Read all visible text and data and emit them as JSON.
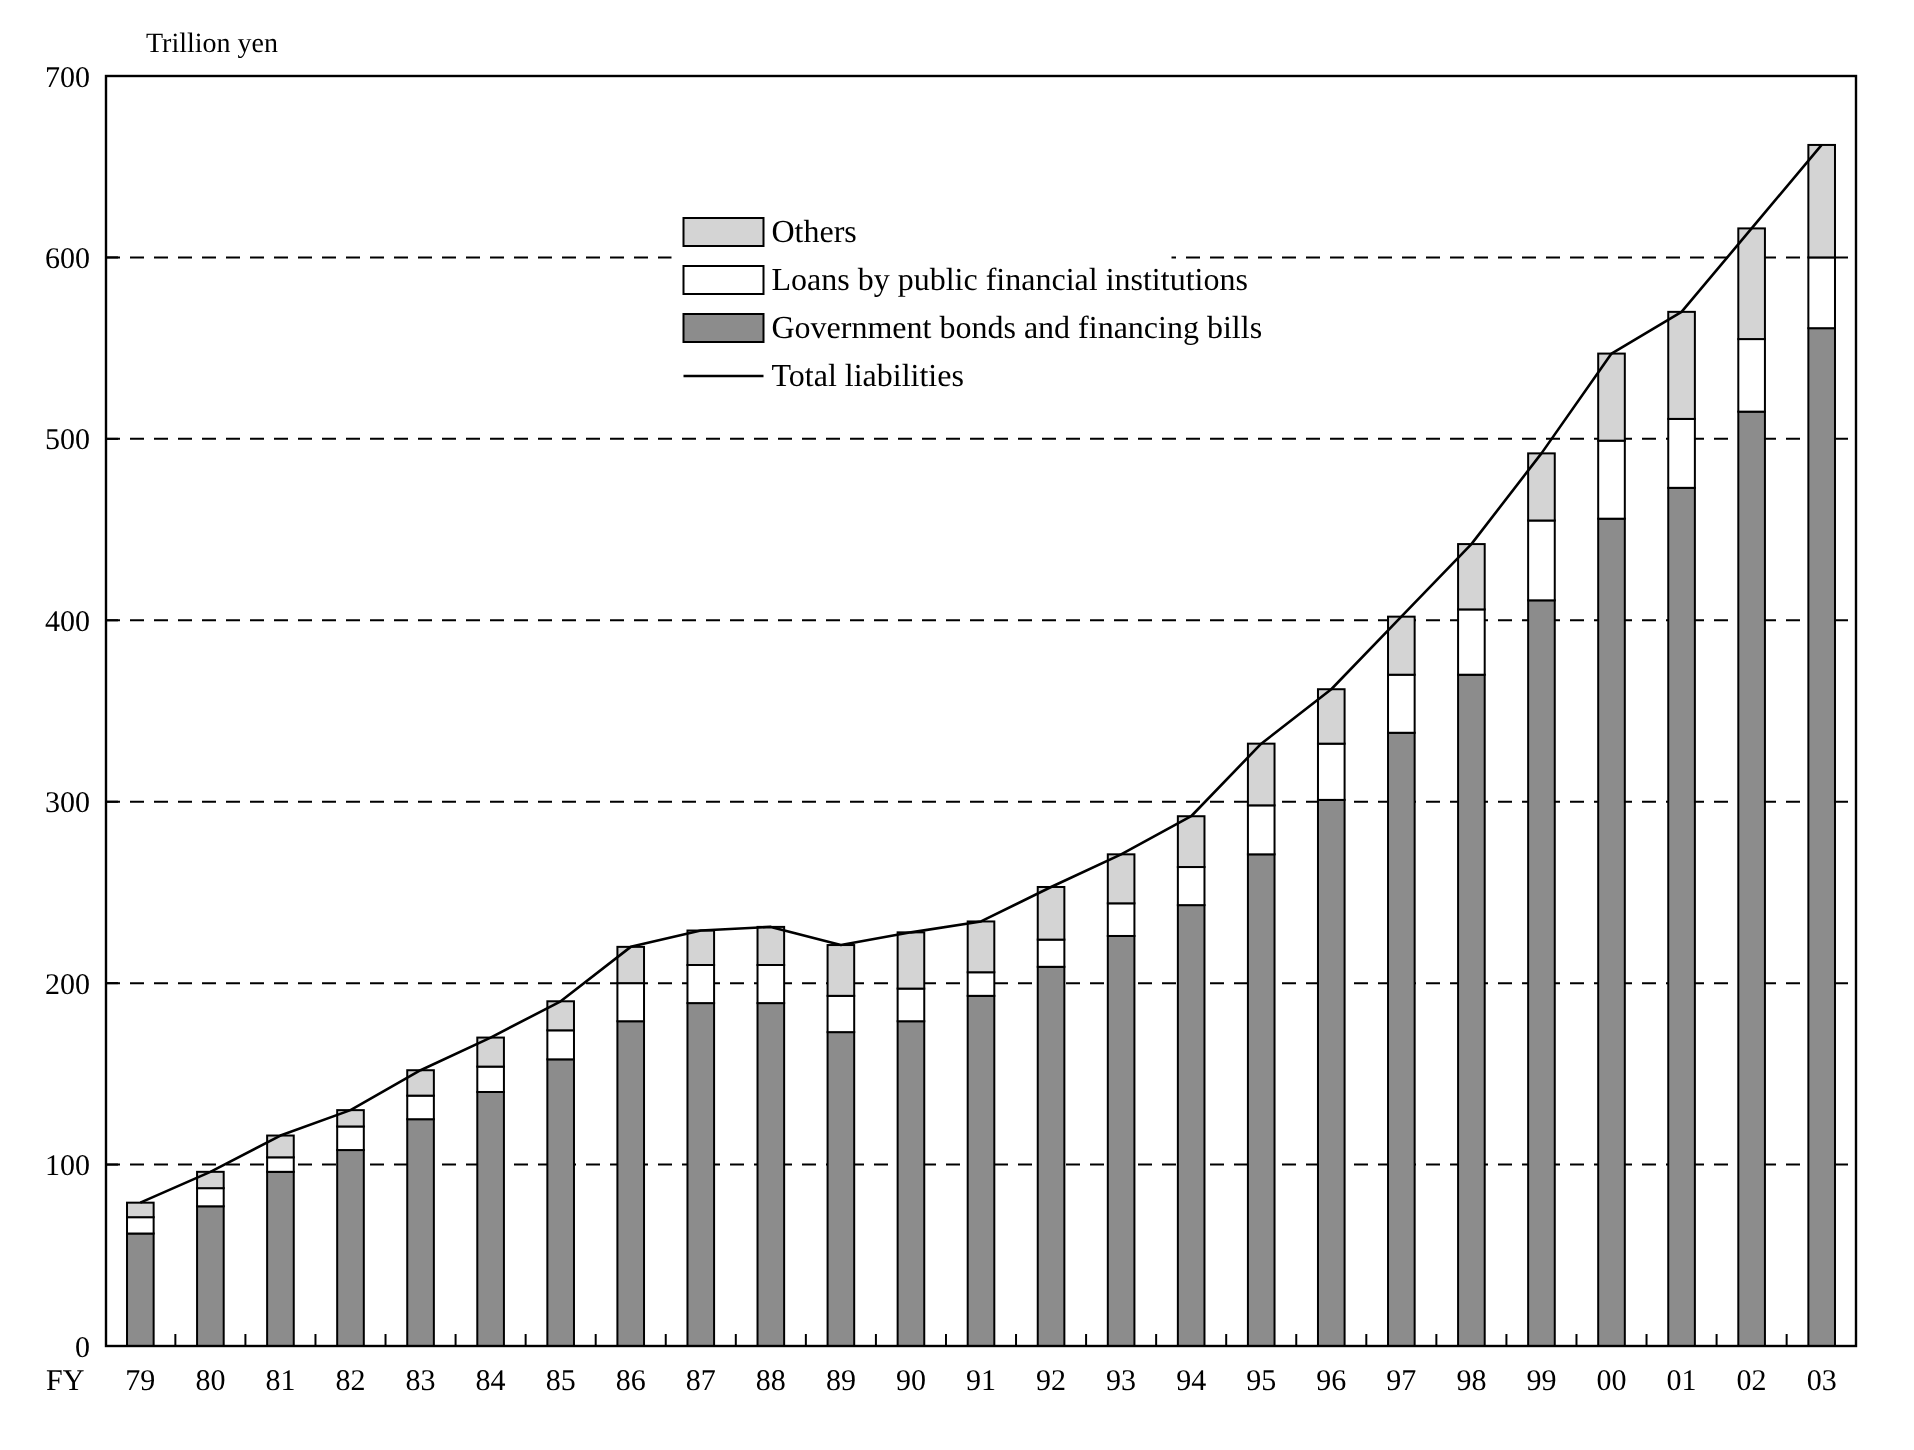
{
  "chart_data": {
    "type": "bar",
    "stacked": true,
    "ylabel": "Trillion yen",
    "xlabel": "FY",
    "categories": [
      "79",
      "80",
      "81",
      "82",
      "83",
      "84",
      "85",
      "86",
      "87",
      "88",
      "89",
      "90",
      "91",
      "92",
      "93",
      "94",
      "95",
      "96",
      "97",
      "98",
      "99",
      "00",
      "01",
      "02",
      "03"
    ],
    "series": [
      {
        "name": "Government bonds and financing bills",
        "color": "#8c8c8c",
        "values": [
          62,
          77,
          96,
          108,
          125,
          140,
          158,
          179,
          189,
          189,
          173,
          179,
          193,
          209,
          226,
          243,
          271,
          301,
          338,
          370,
          411,
          456,
          473,
          515,
          561
        ]
      },
      {
        "name": "Loans by public financial institutions",
        "color": "#ffffff",
        "values": [
          9,
          10,
          8,
          13,
          13,
          14,
          16,
          21,
          21,
          21,
          20,
          18,
          13,
          15,
          18,
          21,
          27,
          31,
          32,
          36,
          44,
          43,
          38,
          40,
          39
        ]
      },
      {
        "name": "Others",
        "color": "#d4d4d4",
        "values": [
          8,
          9,
          12,
          9,
          14,
          16,
          16,
          20,
          19,
          21,
          28,
          31,
          28,
          29,
          27,
          28,
          34,
          30,
          32,
          36,
          37,
          48,
          59,
          61,
          62
        ]
      },
      {
        "name": "Total liabilities",
        "type": "line",
        "color": "#000000",
        "values": [
          79,
          96,
          116,
          130,
          152,
          170,
          190,
          220,
          229,
          231,
          221,
          228,
          234,
          253,
          271,
          292,
          332,
          362,
          402,
          442,
          492,
          547,
          570,
          616,
          662
        ]
      }
    ],
    "ylim": [
      0,
      700
    ],
    "yticks": [
      0,
      100,
      200,
      300,
      400,
      500,
      600,
      700
    ],
    "grid": "y",
    "legend": "top"
  }
}
